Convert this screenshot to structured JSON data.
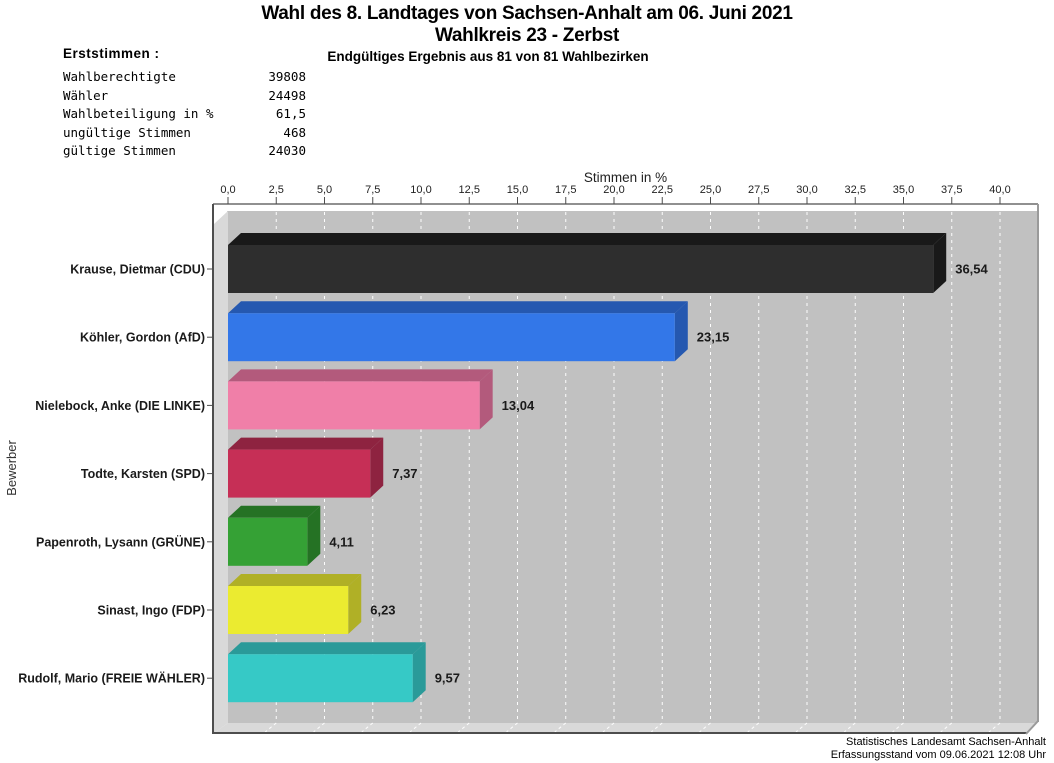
{
  "header": {
    "title_line1": "Wahl des 8. Landtages von Sachsen-Anhalt am 06. Juni 2021",
    "title_line2": "Wahlkreis 23 - Zerbst",
    "subtitle": "Endgültiges Ergebnis aus 81 von 81 Wahlbezirken"
  },
  "stats": {
    "heading": "Erststimmen :",
    "rows": [
      {
        "label": "Wahlberechtigte",
        "value": "39808"
      },
      {
        "label": "Wähler",
        "value": "24498"
      },
      {
        "label": "Wahlbeteiligung in %",
        "value": "61,5"
      },
      {
        "label": "ungültige Stimmen",
        "value": "468"
      },
      {
        "label": "gültige Stimmen",
        "value": "24030"
      }
    ]
  },
  "footer": {
    "line1": "Statistisches Landesamt Sachsen-Anhalt",
    "line2": "Erfassungsstand vom 09.06.2021 12:08 Uhr"
  },
  "colors": {
    "plot_bg": "#c1c1c1",
    "wall": "#d9d9d9",
    "grid": "#fdfdfd",
    "axis": "#4d4d4d",
    "border_light": "#9a9a9a",
    "tick_text": "#222222",
    "label_text": "#1a1a1a"
  },
  "chart_data": {
    "type": "bar",
    "orientation": "horizontal",
    "xlabel": "Stimmen in %",
    "ylabel": "Bewerber",
    "xlim": [
      0,
      42
    ],
    "xtick_step": 2.5,
    "xtick_labels": [
      "0,0",
      "2,5",
      "5,0",
      "7,5",
      "10,0",
      "12,5",
      "15,0",
      "17,5",
      "20,0",
      "22,5",
      "25,0",
      "27,5",
      "30,0",
      "32,5",
      "35,0",
      "37,5",
      "40,0"
    ],
    "grid": true,
    "legend": "none",
    "categories": [
      "Krause, Dietmar (CDU)",
      "Köhler, Gordon (AfD)",
      "Nielebock, Anke (DIE LINKE)",
      "Todte, Karsten (SPD)",
      "Papenroth, Lysann (GRÜNE)",
      "Sinast, Ingo (FDP)",
      "Rudolf, Mario (FREIE WÄHLER)"
    ],
    "values": [
      36.54,
      23.15,
      13.04,
      7.37,
      4.11,
      6.23,
      9.57
    ],
    "value_labels": [
      "36,54",
      "23,15",
      "13,04",
      "7,37",
      "4,11",
      "6,23",
      "9,57"
    ],
    "bars": [
      {
        "party": "CDU",
        "face": "#2e2e2e",
        "shade": "#191919"
      },
      {
        "party": "AfD",
        "face": "#3377e8",
        "shade": "#2558b0"
      },
      {
        "party": "DIE LINKE",
        "face": "#f07fa8",
        "shade": "#b35a7c"
      },
      {
        "party": "SPD",
        "face": "#c62f56",
        "shade": "#8e2340"
      },
      {
        "party": "GRÜNE",
        "face": "#35a135",
        "shade": "#257224"
      },
      {
        "party": "FDP",
        "face": "#ebeb30",
        "shade": "#b0b026"
      },
      {
        "party": "FREIE WÄHLER",
        "face": "#36c9c6",
        "shade": "#2a9a99"
      }
    ]
  }
}
